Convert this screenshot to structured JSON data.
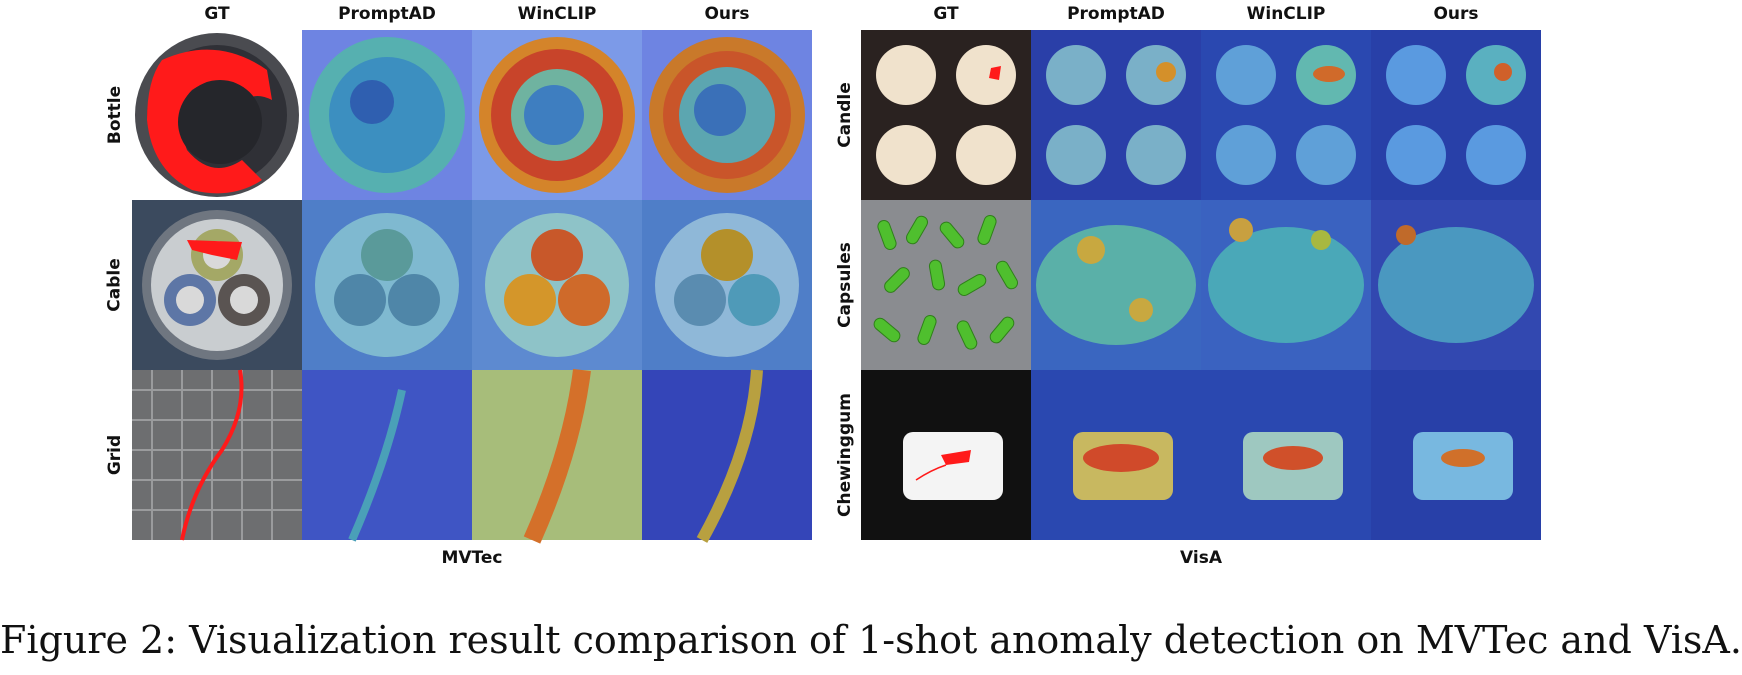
{
  "panels": [
    {
      "dataset": "MVTec",
      "columns": [
        "GT",
        "PromptAD",
        "WinCLIP",
        "Ours"
      ],
      "rows": [
        "Bottle",
        "Cable",
        "Grid"
      ]
    },
    {
      "dataset": "VisA",
      "columns": [
        "GT",
        "PromptAD",
        "WinCLIP",
        "Ours"
      ],
      "rows": [
        "Candle",
        "Capsules",
        "Chewinggum"
      ]
    }
  ],
  "caption": "Figure 2: Visualization result comparison of 1-shot anomaly detection on MVTec and VisA.",
  "colors": {
    "anomaly_mask": "#ff1a1a",
    "heatmap_low": "#2a3fc0",
    "heatmap_mid": "#39c2c8",
    "heatmap_high": "#e63b1f"
  }
}
